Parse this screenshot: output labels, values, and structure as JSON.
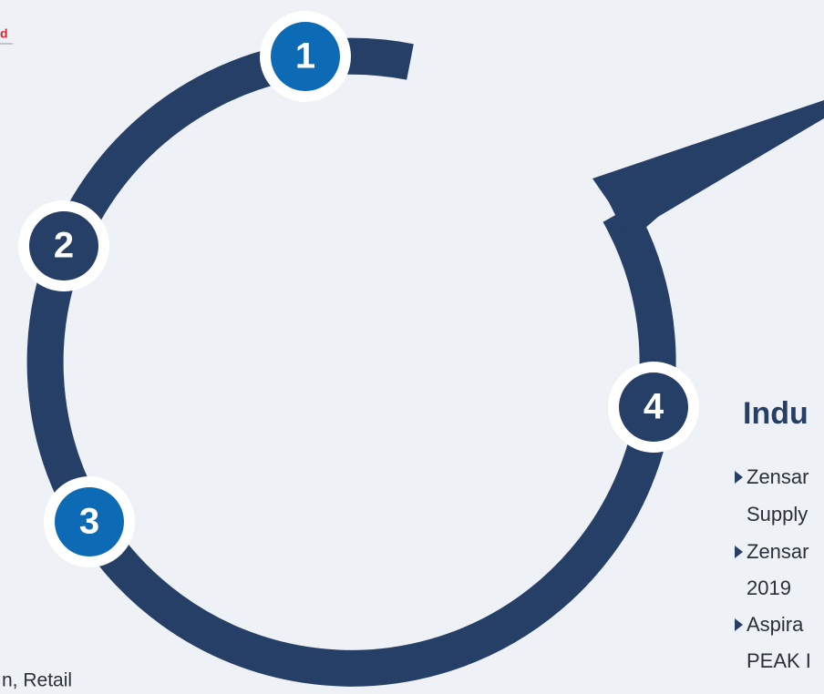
{
  "logo_fragment": "d",
  "steps": [
    "1",
    "2",
    "3",
    "4"
  ],
  "heading": "Indu",
  "bullets": [
    [
      "Zensar",
      "Supply"
    ],
    [
      "Zensar",
      "2019"
    ],
    [
      "Aspira",
      "PEAK I"
    ]
  ],
  "left_fragment": "n, Retail"
}
